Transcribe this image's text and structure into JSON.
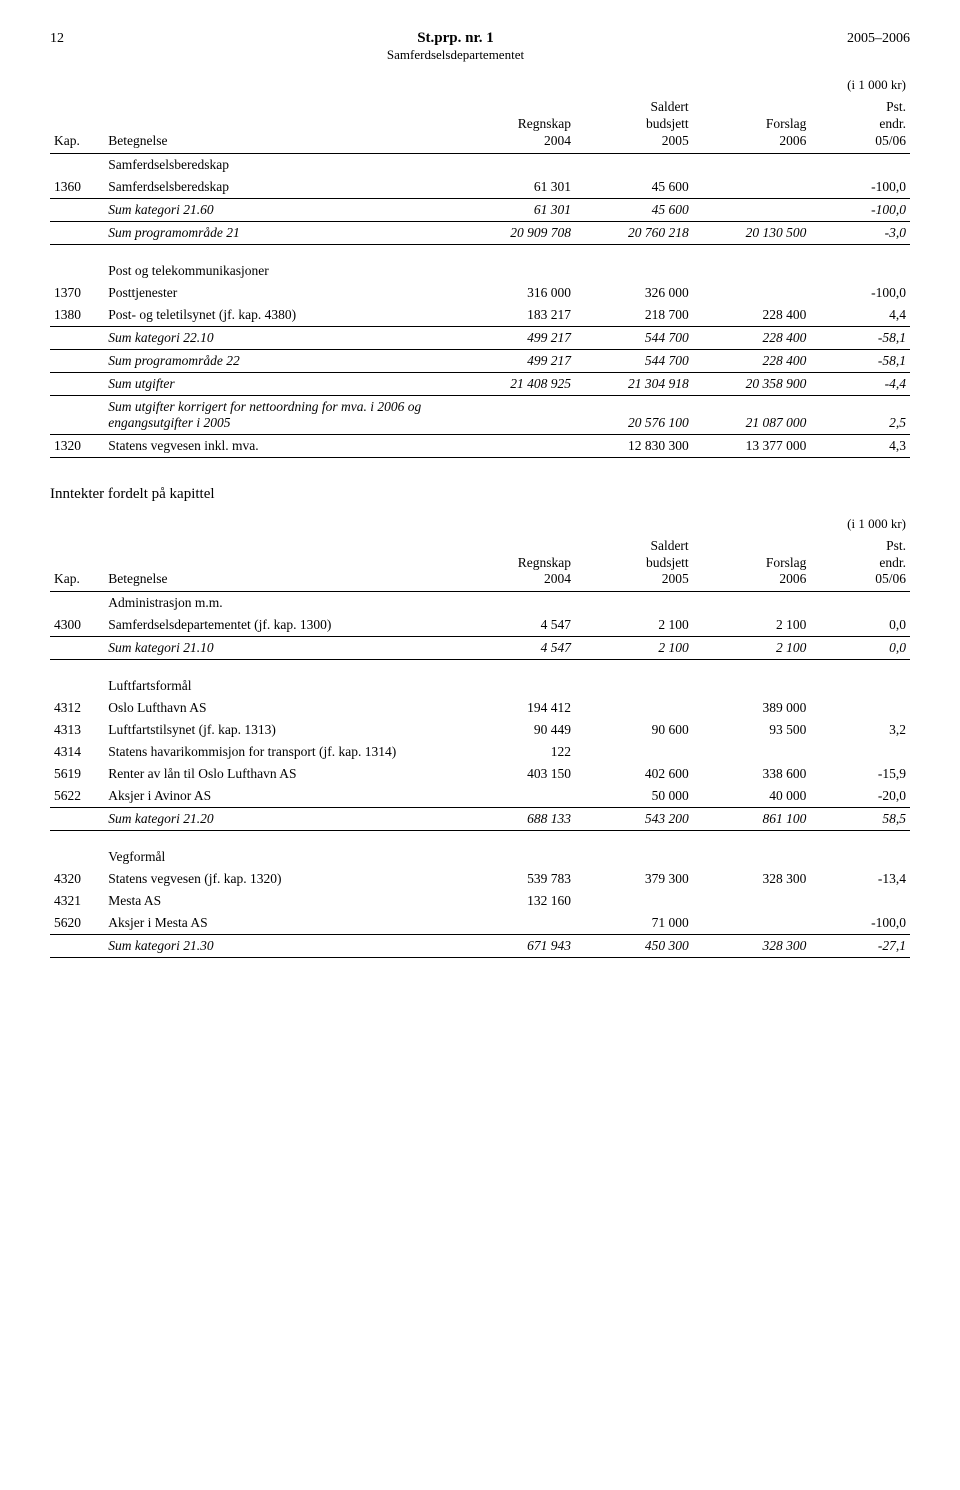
{
  "header": {
    "page_left": "12",
    "title": "St.prp. nr. 1",
    "subtitle": "Samferdselsdepartementet",
    "page_right": "2005–2006"
  },
  "unit_label": "(i 1 000 kr)",
  "col_headers": {
    "kap": "Kap.",
    "betegnelse": "Betegnelse",
    "regnskap": "Regnskap\n2004",
    "saldert": "Saldert\nbudsjett\n2005",
    "forslag": "Forslag\n2006",
    "pst": "Pst.\nendr.\n05/06"
  },
  "table1": {
    "group1_title": "Samferdselsberedskap",
    "rows": [
      {
        "kap": "1360",
        "bet": "Samferdselsberedskap",
        "c1": "61 301",
        "c2": "45 600",
        "c3": "",
        "c4": "-100,0"
      }
    ],
    "sumkat": {
      "bet": "Sum kategori 21.60",
      "c1": "61 301",
      "c2": "45 600",
      "c3": "",
      "c4": "-100,0"
    },
    "sumprog": {
      "bet": "Sum programområde 21",
      "c1": "20 909 708",
      "c2": "20 760 218",
      "c3": "20 130 500",
      "c4": "-3,0"
    },
    "group2_title": "Post og telekommunikasjoner",
    "rows2": [
      {
        "kap": "1370",
        "bet": "Posttjenester",
        "c1": "316 000",
        "c2": "326 000",
        "c3": "",
        "c4": "-100,0"
      },
      {
        "kap": "1380",
        "bet": "Post- og teletilsynet (jf. kap. 4380)",
        "c1": "183 217",
        "c2": "218 700",
        "c3": "228 400",
        "c4": "4,4"
      }
    ],
    "sumkat2": {
      "bet": "Sum kategori 22.10",
      "c1": "499 217",
      "c2": "544 700",
      "c3": "228 400",
      "c4": "-58,1"
    },
    "sumprog2": {
      "bet": "Sum programområde 22",
      "c1": "499 217",
      "c2": "544 700",
      "c3": "228 400",
      "c4": "-58,1"
    },
    "sumutg": {
      "bet": "Sum utgifter",
      "c1": "21 408 925",
      "c2": "21 304 918",
      "c3": "20 358 900",
      "c4": "-4,4"
    },
    "sumutg2": {
      "bet": "Sum utgifter korrigert for nettoordning for mva. i 2006 og engangsutgifter i 2005",
      "c1": "",
      "c2": "20 576 100",
      "c3": "21 087 000",
      "c4": "2,5"
    },
    "row1320": {
      "kap": "1320",
      "bet": "Statens vegvesen inkl. mva.",
      "c1": "",
      "c2": "12 830 300",
      "c3": "13 377 000",
      "c4": "4,3"
    }
  },
  "section2_title": "Inntekter fordelt på kapittel",
  "table2": {
    "group1_title": "Administrasjon m.m.",
    "rows1": [
      {
        "kap": "4300",
        "bet": "Samferdselsdepartementet (jf. kap. 1300)",
        "c1": "4 547",
        "c2": "2 100",
        "c3": "2 100",
        "c4": "0,0"
      }
    ],
    "sumkat1": {
      "bet": "Sum kategori 21.10",
      "c1": "4 547",
      "c2": "2 100",
      "c3": "2 100",
      "c4": "0,0"
    },
    "group2_title": "Luftfartsformål",
    "rows2": [
      {
        "kap": "4312",
        "bet": "Oslo Lufthavn AS",
        "c1": "194 412",
        "c2": "",
        "c3": "389 000",
        "c4": ""
      },
      {
        "kap": "4313",
        "bet": "Luftfartstilsynet (jf. kap. 1313)",
        "c1": "90 449",
        "c2": "90 600",
        "c3": "93 500",
        "c4": "3,2"
      },
      {
        "kap": "4314",
        "bet": "Statens havarikommisjon for transport (jf. kap. 1314)",
        "c1": "122",
        "c2": "",
        "c3": "",
        "c4": ""
      },
      {
        "kap": "5619",
        "bet": "Renter av lån til Oslo Lufthavn AS",
        "c1": "403 150",
        "c2": "402 600",
        "c3": "338 600",
        "c4": "-15,9"
      },
      {
        "kap": "5622",
        "bet": "Aksjer i Avinor AS",
        "c1": "",
        "c2": "50 000",
        "c3": "40 000",
        "c4": "-20,0"
      }
    ],
    "sumkat2": {
      "bet": "Sum kategori 21.20",
      "c1": "688 133",
      "c2": "543 200",
      "c3": "861 100",
      "c4": "58,5"
    },
    "group3_title": "Vegformål",
    "rows3": [
      {
        "kap": "4320",
        "bet": "Statens vegvesen (jf. kap. 1320)",
        "c1": "539 783",
        "c2": "379 300",
        "c3": "328 300",
        "c4": "-13,4"
      },
      {
        "kap": "4321",
        "bet": "Mesta AS",
        "c1": "132 160",
        "c2": "",
        "c3": "",
        "c4": ""
      },
      {
        "kap": "5620",
        "bet": "Aksjer i Mesta AS",
        "c1": "",
        "c2": "71 000",
        "c3": "",
        "c4": "-100,0"
      }
    ],
    "sumkat3": {
      "bet": "Sum kategori 21.30",
      "c1": "671 943",
      "c2": "450 300",
      "c3": "328 300",
      "c4": "-27,1"
    }
  }
}
